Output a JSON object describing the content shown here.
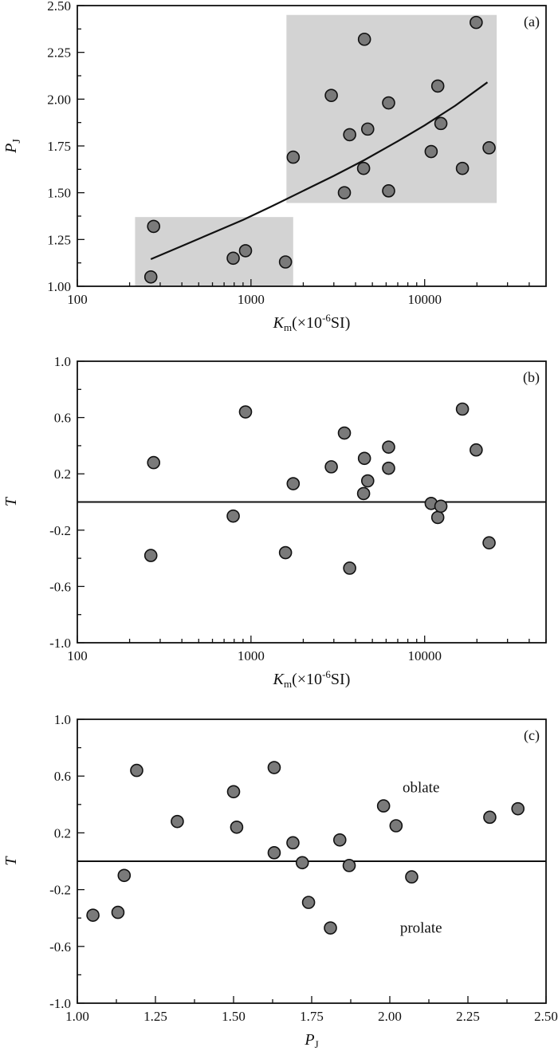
{
  "chart_data": [
    {
      "id": "a",
      "type": "scatter",
      "panel_label": "(a)",
      "xscale": "log",
      "xlim": [
        100,
        50000
      ],
      "ylim": [
        1.0,
        2.5
      ],
      "xticks": [
        100,
        1000,
        10000
      ],
      "xtick_labels": [
        "100",
        "1000",
        "10000"
      ],
      "yticks": [
        1.0,
        1.25,
        1.5,
        1.75,
        2.0,
        2.25,
        2.5
      ],
      "ytick_labels": [
        "1.00",
        "1.25",
        "1.50",
        "1.75",
        "2.00",
        "2.25",
        "2.50"
      ],
      "ylabel": {
        "main": "P",
        "sub": "J"
      },
      "xlabel": {
        "main": "K",
        "sub": "m",
        "rest": "(×10",
        "exp": "-6",
        "unit": "SI)"
      },
      "grid": false,
      "shaded_regions": [
        {
          "x": [
            215,
            1750
          ],
          "y": [
            1.0,
            1.37
          ]
        },
        {
          "x": [
            1600,
            26000
          ],
          "y": [
            1.445,
            2.45
          ]
        }
      ],
      "trend_line": {
        "x": [
          265,
          400,
          600,
          900,
          1300,
          2000,
          3000,
          4500,
          7000,
          10000,
          15000,
          23000
        ],
        "y": [
          1.145,
          1.215,
          1.285,
          1.355,
          1.425,
          1.51,
          1.59,
          1.675,
          1.775,
          1.86,
          1.965,
          2.09
        ]
      },
      "points": {
        "x": [
          265,
          275,
          790,
          930,
          1580,
          1750,
          2900,
          3450,
          3700,
          4450,
          4500,
          4700,
          6200,
          6200,
          10900,
          11900,
          12400,
          16500,
          19800,
          23500
        ],
        "y": [
          1.05,
          1.32,
          1.15,
          1.19,
          1.13,
          1.69,
          2.02,
          1.5,
          1.81,
          1.63,
          2.32,
          1.84,
          1.51,
          1.98,
          1.72,
          2.07,
          1.87,
          1.63,
          2.41,
          1.74
        ]
      }
    },
    {
      "id": "b",
      "type": "scatter",
      "panel_label": "(b)",
      "xscale": "log",
      "xlim": [
        100,
        50000
      ],
      "ylim": [
        -1.0,
        1.0
      ],
      "xticks": [
        100,
        1000,
        10000
      ],
      "xtick_labels": [
        "100",
        "1000",
        "10000"
      ],
      "yticks": [
        -1.0,
        -0.6,
        -0.2,
        0.2,
        0.6,
        1.0
      ],
      "ytick_labels": [
        "-1.0",
        "-0.6",
        "-0.2",
        "0.2",
        "0.6",
        "1.0"
      ],
      "ylabel": {
        "main": "T",
        "sub": ""
      },
      "xlabel": {
        "main": "K",
        "sub": "m",
        "rest": "(×10",
        "exp": "-6",
        "unit": "SI)"
      },
      "grid": false,
      "ref_line_y": 0,
      "points": {
        "x": [
          265,
          275,
          790,
          930,
          1580,
          1750,
          2900,
          3450,
          3700,
          4450,
          4500,
          4700,
          6200,
          6200,
          10900,
          11900,
          12400,
          16500,
          19800,
          23500
        ],
        "y": [
          -0.38,
          0.28,
          -0.1,
          0.64,
          -0.36,
          0.13,
          0.25,
          0.49,
          -0.47,
          0.06,
          0.31,
          0.15,
          0.24,
          0.39,
          -0.01,
          -0.11,
          -0.03,
          0.66,
          0.37,
          -0.29
        ]
      }
    },
    {
      "id": "c",
      "type": "scatter",
      "panel_label": "(c)",
      "xscale": "linear",
      "xlim": [
        1.0,
        2.5
      ],
      "ylim": [
        -1.0,
        1.0
      ],
      "xticks": [
        1.0,
        1.25,
        1.5,
        1.75,
        2.0,
        2.25,
        2.5
      ],
      "xtick_labels": [
        "1.00",
        "1.25",
        "1.50",
        "1.75",
        "2.00",
        "2.25",
        "2.50"
      ],
      "yticks": [
        -1.0,
        -0.6,
        -0.2,
        0.2,
        0.6,
        1.0
      ],
      "ytick_labels": [
        "-1.0",
        "-0.6",
        "-0.2",
        "0.2",
        "0.6",
        "1.0"
      ],
      "ylabel": {
        "main": "T",
        "sub": ""
      },
      "xlabel": {
        "main": "P",
        "sub": "J",
        "rest": "",
        "exp": "",
        "unit": ""
      },
      "grid": false,
      "ref_line_y": 0,
      "annotations": [
        {
          "text": "oblate",
          "x": 2.1,
          "y": 0.52
        },
        {
          "text": "prolate",
          "x": 2.1,
          "y": -0.47
        }
      ],
      "points": {
        "x": [
          1.05,
          1.13,
          1.15,
          1.19,
          1.32,
          1.5,
          1.51,
          1.63,
          1.63,
          1.69,
          1.72,
          1.74,
          1.81,
          1.84,
          1.87,
          1.98,
          2.02,
          2.07,
          2.32,
          2.41
        ],
        "y": [
          -0.38,
          -0.36,
          -0.1,
          0.64,
          0.28,
          0.49,
          0.24,
          0.06,
          0.66,
          0.13,
          -0.01,
          -0.29,
          -0.47,
          0.15,
          -0.03,
          0.39,
          0.25,
          -0.11,
          0.31,
          0.37
        ]
      }
    }
  ],
  "colors": {
    "point_fill": "#7a7a7a",
    "point_stroke": "#111111",
    "shade": "#d3d3d3",
    "axis": "#111111",
    "background": "#ffffff"
  }
}
